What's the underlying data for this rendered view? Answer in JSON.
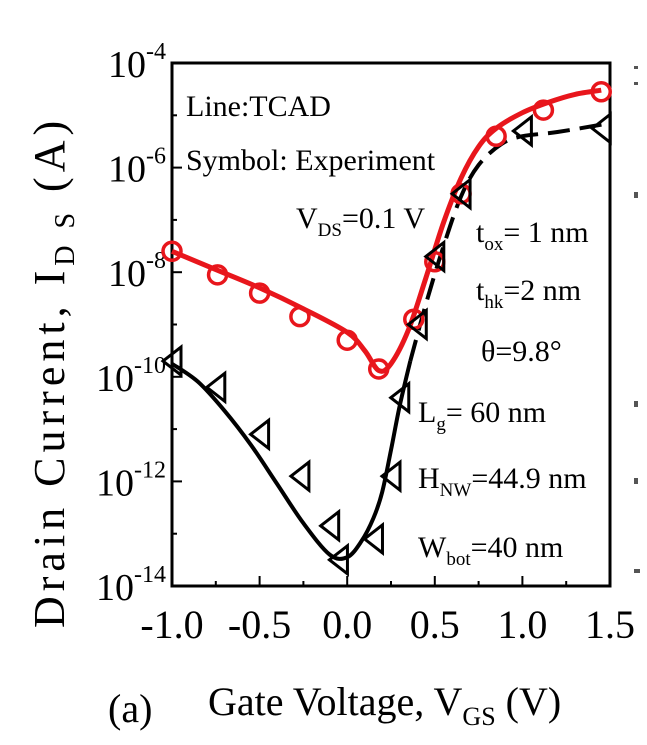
{
  "panel_label": "(a)",
  "annotations": {
    "line_label": "Line:TCAD",
    "symbol_label": "Symbol: Experiment",
    "vds": {
      "base": "V",
      "sub": "DS",
      "rest": "=0.1 V"
    },
    "tox": {
      "base": "t",
      "sub": "ox",
      "rest": "= 1 nm"
    },
    "thk": {
      "base": "t",
      "sub": "hk",
      "rest": "=2 nm"
    },
    "theta": "θ=9.8°",
    "lg": {
      "base": "L",
      "sub": "g",
      "rest": "= 60 nm"
    },
    "hnw": {
      "base": "H",
      "sub": "NW",
      "rest": "=44.9 nm"
    },
    "wbot": {
      "base": "W",
      "sub": "bot",
      "rest": "=40 nm"
    }
  },
  "chart_data": {
    "type": "line",
    "xlabel": {
      "text": "Gate Voltage, V",
      "sub": "GS",
      "after": " (V)"
    },
    "ylabel": {
      "text": "Drain Current, I",
      "sub": "D S",
      "after": " (A)"
    },
    "xlim": [
      -1.0,
      1.5
    ],
    "ylim_exp": [
      -14,
      -4
    ],
    "yscale": "log",
    "xticks": [
      -1.0,
      -0.5,
      0.0,
      0.5,
      1.0,
      1.5
    ],
    "xtick_labels": [
      "-1.0",
      "-0.5",
      "0.0",
      "0.5",
      "1.0",
      "1.5"
    ],
    "yticks_exp": [
      -4,
      -6,
      -8,
      -10,
      -12,
      -14
    ],
    "ytick_base": "10",
    "ytick_exponents": [
      "-4",
      "-6",
      "-8",
      "-10",
      "-12",
      "-14"
    ],
    "series": [
      {
        "color": "#e8161c",
        "line_style": "solid",
        "marker": "circle",
        "tcad_line": [
          {
            "x": -1.0,
            "log10y": -7.6
          },
          {
            "x": -0.75,
            "log10y": -7.95
          },
          {
            "x": -0.5,
            "log10y": -8.3
          },
          {
            "x": -0.25,
            "log10y": -8.7
          },
          {
            "x": 0.0,
            "log10y": -9.15
          },
          {
            "x": 0.1,
            "log10y": -9.5
          },
          {
            "x": 0.18,
            "log10y": -9.88
          },
          {
            "x": 0.25,
            "log10y": -9.75
          },
          {
            "x": 0.35,
            "log10y": -9.1
          },
          {
            "x": 0.45,
            "log10y": -8.1
          },
          {
            "x": 0.55,
            "log10y": -7.05
          },
          {
            "x": 0.65,
            "log10y": -6.2
          },
          {
            "x": 0.75,
            "log10y": -5.6
          },
          {
            "x": 0.85,
            "log10y": -5.25
          },
          {
            "x": 1.0,
            "log10y": -4.95
          },
          {
            "x": 1.15,
            "log10y": -4.75
          },
          {
            "x": 1.3,
            "log10y": -4.6
          },
          {
            "x": 1.45,
            "log10y": -4.52
          }
        ],
        "experiment": [
          {
            "x": -1.0,
            "log10y": -7.6
          },
          {
            "x": -0.74,
            "log10y": -8.05
          },
          {
            "x": -0.5,
            "log10y": -8.4
          },
          {
            "x": -0.27,
            "log10y": -8.85
          },
          {
            "x": 0.0,
            "log10y": -9.3
          },
          {
            "x": 0.18,
            "log10y": -9.85
          },
          {
            "x": 0.38,
            "log10y": -8.9
          },
          {
            "x": 0.5,
            "log10y": -7.8
          },
          {
            "x": 0.65,
            "log10y": -6.5
          },
          {
            "x": 0.85,
            "log10y": -5.4
          },
          {
            "x": 1.12,
            "log10y": -4.9
          },
          {
            "x": 1.45,
            "log10y": -4.55
          }
        ]
      },
      {
        "color": "#000000",
        "line_style": "solid-then-dashed",
        "marker": "triangle-left",
        "tcad_line": [
          {
            "x": -1.0,
            "log10y": -9.75
          },
          {
            "x": -0.85,
            "log10y": -10.1
          },
          {
            "x": -0.7,
            "log10y": -10.65
          },
          {
            "x": -0.55,
            "log10y": -11.3
          },
          {
            "x": -0.4,
            "log10y": -12.05
          },
          {
            "x": -0.25,
            "log10y": -12.8
          },
          {
            "x": -0.1,
            "log10y": -13.4
          },
          {
            "x": 0.0,
            "log10y": -13.45
          },
          {
            "x": 0.08,
            "log10y": -13.15
          },
          {
            "x": 0.15,
            "log10y": -12.7
          },
          {
            "x": 0.2,
            "log10y": -12.2
          },
          {
            "x": 0.25,
            "log10y": -11.4
          },
          {
            "x": 0.3,
            "log10y": -10.55
          },
          {
            "x": 0.36,
            "log10y": -9.7
          },
          {
            "x": 0.45,
            "log10y": -8.6
          },
          {
            "x": 0.55,
            "log10y": -7.5
          },
          {
            "x": 0.65,
            "log10y": -6.55
          },
          {
            "x": 0.75,
            "log10y": -5.95
          },
          {
            "x": 0.88,
            "log10y": -5.55
          },
          {
            "x": 1.0,
            "log10y": -5.4
          },
          {
            "x": 1.2,
            "log10y": -5.32
          },
          {
            "x": 1.5,
            "log10y": -5.15
          }
        ],
        "experiment": [
          {
            "x": -1.0,
            "log10y": -9.7
          },
          {
            "x": -0.75,
            "log10y": -10.2
          },
          {
            "x": -0.5,
            "log10y": -11.1
          },
          {
            "x": -0.27,
            "log10y": -11.9
          },
          {
            "x": -0.1,
            "log10y": -12.85
          },
          {
            "x": -0.05,
            "log10y": -13.5
          },
          {
            "x": 0.15,
            "log10y": -13.1
          },
          {
            "x": 0.25,
            "log10y": -11.9
          },
          {
            "x": 0.3,
            "log10y": -10.4
          },
          {
            "x": 0.4,
            "log10y": -9.0
          },
          {
            "x": 0.5,
            "log10y": -7.7
          },
          {
            "x": 0.65,
            "log10y": -6.5
          },
          {
            "x": 1.0,
            "log10y": -5.3
          },
          {
            "x": 1.45,
            "log10y": -5.25
          }
        ]
      }
    ]
  }
}
